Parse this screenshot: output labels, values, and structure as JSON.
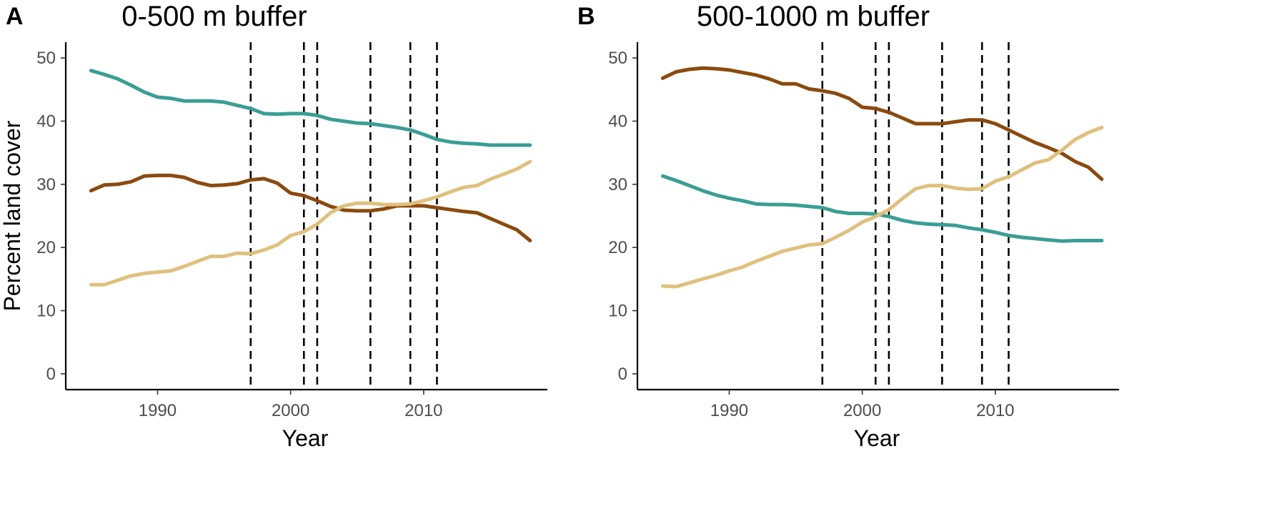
{
  "colors": {
    "teal": "#3a9e94",
    "brown": "#8b4a0e",
    "tan": "#dfc07e"
  },
  "chart_data": [
    {
      "type": "line",
      "panel_letter": "A",
      "title": "0-500 m buffer",
      "xlabel": "Year",
      "ylabel": "Percent land cover",
      "xlim": [
        1983.1,
        2019.3
      ],
      "ylim": [
        -2.5,
        52.5
      ],
      "xticks": [
        1990,
        2000,
        2010
      ],
      "yticks": [
        0,
        10,
        20,
        30,
        40,
        50
      ],
      "vlines": [
        1997,
        2001,
        2002,
        2006,
        2009,
        2011
      ],
      "x": [
        1985,
        1986,
        1987,
        1988,
        1989,
        1990,
        1991,
        1992,
        1993,
        1994,
        1995,
        1996,
        1997,
        1998,
        1999,
        2000,
        2001,
        2002,
        2003,
        2004,
        2005,
        2006,
        2007,
        2008,
        2009,
        2010,
        2011,
        2012,
        2013,
        2014,
        2015,
        2016,
        2017,
        2018
      ],
      "series": [
        {
          "name": "teal",
          "color_key": "teal",
          "values": [
            48.0,
            47.4,
            46.7,
            45.7,
            44.6,
            43.8,
            43.6,
            43.2,
            43.2,
            43.2,
            43.0,
            42.5,
            42.0,
            41.2,
            41.1,
            41.2,
            41.2,
            40.9,
            40.3,
            40.0,
            39.7,
            39.6,
            39.3,
            39.0,
            38.6,
            37.9,
            37.1,
            36.7,
            36.5,
            36.4,
            36.2,
            36.2,
            36.2,
            36.2
          ]
        },
        {
          "name": "brown",
          "color_key": "brown",
          "values": [
            29.0,
            29.9,
            30.0,
            30.4,
            31.3,
            31.4,
            31.4,
            31.1,
            30.3,
            29.8,
            29.9,
            30.1,
            30.7,
            30.9,
            30.2,
            28.6,
            28.2,
            27.4,
            26.5,
            25.9,
            25.8,
            25.8,
            26.1,
            26.6,
            26.6,
            26.6,
            26.3,
            26.0,
            25.7,
            25.5,
            24.6,
            23.7,
            22.8,
            21.1
          ]
        },
        {
          "name": "tan",
          "color_key": "tan",
          "values": [
            14.1,
            14.1,
            14.8,
            15.5,
            15.9,
            16.1,
            16.3,
            17.0,
            17.8,
            18.6,
            18.6,
            19.1,
            19.0,
            19.6,
            20.4,
            21.9,
            22.5,
            23.7,
            25.5,
            26.6,
            27.0,
            27.0,
            26.8,
            26.8,
            26.9,
            27.4,
            28.0,
            28.8,
            29.5,
            29.8,
            30.8,
            31.6,
            32.4,
            33.6
          ]
        }
      ]
    },
    {
      "type": "line",
      "panel_letter": "B",
      "title": "500-1000 m buffer",
      "xlabel": "Year",
      "ylabel": "",
      "xlim": [
        1983.1,
        2019.3
      ],
      "ylim": [
        -2.5,
        52.5
      ],
      "xticks": [
        1990,
        2000,
        2010
      ],
      "yticks": [
        0,
        10,
        20,
        30,
        40,
        50
      ],
      "vlines": [
        1997,
        2001,
        2002,
        2006,
        2009,
        2011
      ],
      "x": [
        1985,
        1986,
        1987,
        1988,
        1989,
        1990,
        1991,
        1992,
        1993,
        1994,
        1995,
        1996,
        1997,
        1998,
        1999,
        2000,
        2001,
        2002,
        2003,
        2004,
        2005,
        2006,
        2007,
        2008,
        2009,
        2010,
        2011,
        2012,
        2013,
        2014,
        2015,
        2016,
        2017,
        2018
      ],
      "series": [
        {
          "name": "brown",
          "color_key": "brown",
          "values": [
            46.8,
            47.8,
            48.2,
            48.4,
            48.3,
            48.1,
            47.7,
            47.3,
            46.7,
            45.9,
            45.9,
            45.1,
            44.8,
            44.4,
            43.6,
            42.2,
            42.0,
            41.4,
            40.5,
            39.6,
            39.6,
            39.6,
            39.9,
            40.2,
            40.2,
            39.6,
            38.6,
            37.6,
            36.6,
            35.8,
            34.9,
            33.6,
            32.7,
            30.8
          ]
        },
        {
          "name": "teal",
          "color_key": "teal",
          "values": [
            31.3,
            30.6,
            29.8,
            29.0,
            28.3,
            27.8,
            27.4,
            26.9,
            26.8,
            26.8,
            26.7,
            26.5,
            26.3,
            25.7,
            25.4,
            25.4,
            25.3,
            24.9,
            24.3,
            23.9,
            23.7,
            23.6,
            23.5,
            23.1,
            22.8,
            22.4,
            21.9,
            21.6,
            21.4,
            21.2,
            21.0,
            21.1,
            21.1,
            21.1
          ]
        },
        {
          "name": "tan",
          "color_key": "tan",
          "values": [
            13.9,
            13.8,
            14.4,
            15.0,
            15.6,
            16.3,
            16.9,
            17.8,
            18.6,
            19.4,
            19.9,
            20.4,
            20.6,
            21.6,
            22.7,
            24.0,
            24.9,
            26.0,
            27.7,
            29.3,
            29.8,
            29.8,
            29.4,
            29.2,
            29.3,
            30.5,
            31.2,
            32.3,
            33.4,
            33.9,
            35.4,
            37.1,
            38.2,
            39.0
          ]
        }
      ]
    }
  ]
}
